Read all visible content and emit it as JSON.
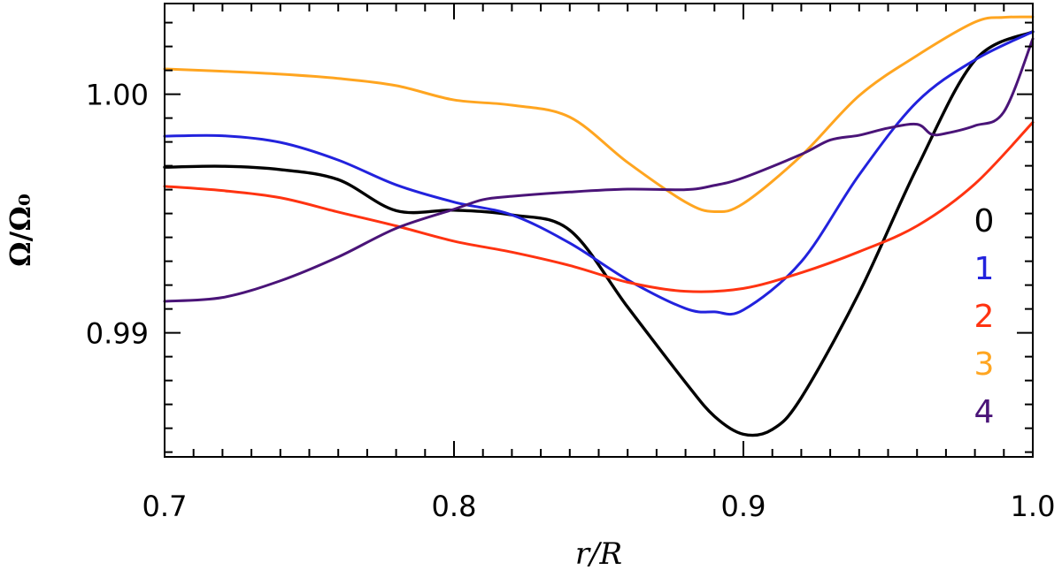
{
  "chart_data": {
    "type": "line",
    "title": "",
    "xlabel": "r/R",
    "ylabel": "Ω/Ω₀",
    "xlim": [
      0.7,
      1.0
    ],
    "ylim": [
      0.9848,
      1.0038
    ],
    "x_ticks": [
      0.7,
      0.8,
      0.9,
      1.0
    ],
    "x_tick_labels": [
      "0.7",
      "0.8",
      "0.9",
      "1.0"
    ],
    "y_ticks": [
      0.99,
      1.0
    ],
    "y_tick_labels": [
      "0.99",
      "1.00"
    ],
    "grid": false,
    "legend_placement": "right",
    "series": [
      {
        "name": "0",
        "color": "#000000",
        "x": [
          0.7,
          0.72,
          0.74,
          0.76,
          0.78,
          0.8,
          0.82,
          0.84,
          0.86,
          0.88,
          0.89,
          0.9,
          0.91,
          0.92,
          0.94,
          0.96,
          0.98,
          1.0
        ],
        "y": [
          0.99694,
          0.99698,
          0.99684,
          0.99642,
          0.99512,
          0.99514,
          0.99494,
          0.9943,
          0.99108,
          0.98792,
          0.9865,
          0.98575,
          0.98595,
          0.98728,
          0.99168,
          0.99692,
          1.00142,
          1.00262
        ]
      },
      {
        "name": "1",
        "color": "#2222dd",
        "x": [
          0.7,
          0.72,
          0.74,
          0.76,
          0.78,
          0.8,
          0.82,
          0.84,
          0.86,
          0.88,
          0.89,
          0.9,
          0.92,
          0.94,
          0.96,
          0.98,
          1.0
        ],
        "y": [
          0.99824,
          0.99826,
          0.99798,
          0.99724,
          0.9962,
          0.99548,
          0.99494,
          0.99376,
          0.99222,
          0.99102,
          0.99088,
          0.99096,
          0.99298,
          0.99662,
          0.99968,
          1.00144,
          1.00262
        ]
      },
      {
        "name": "2",
        "color": "#ff3311",
        "x": [
          0.7,
          0.72,
          0.74,
          0.76,
          0.78,
          0.8,
          0.82,
          0.84,
          0.86,
          0.88,
          0.9,
          0.92,
          0.94,
          0.96,
          0.98,
          1.0
        ],
        "y": [
          0.99614,
          0.99596,
          0.99566,
          0.99506,
          0.99448,
          0.99384,
          0.99338,
          0.99282,
          0.99212,
          0.99174,
          0.99186,
          0.99252,
          0.9934,
          0.99448,
          0.99624,
          0.99882
        ]
      },
      {
        "name": "3",
        "color": "#ffa520",
        "x": [
          0.7,
          0.72,
          0.74,
          0.76,
          0.78,
          0.8,
          0.82,
          0.84,
          0.86,
          0.88,
          0.89,
          0.9,
          0.92,
          0.94,
          0.96,
          0.98,
          0.99,
          1.0
        ],
        "y": [
          1.00106,
          1.00096,
          1.00084,
          1.00066,
          1.00036,
          0.99976,
          0.99954,
          0.99904,
          0.99714,
          0.99548,
          0.99508,
          0.99542,
          0.99742,
          0.99994,
          1.00162,
          1.00302,
          1.00322,
          1.00324
        ]
      },
      {
        "name": "4",
        "color": "#4a1478",
        "x": [
          0.7,
          0.72,
          0.74,
          0.76,
          0.78,
          0.8,
          0.81,
          0.82,
          0.84,
          0.86,
          0.88,
          0.89,
          0.9,
          0.92,
          0.93,
          0.94,
          0.95,
          0.96,
          0.965,
          0.97,
          0.98,
          0.99,
          1.0
        ],
        "y": [
          0.99132,
          0.99148,
          0.99218,
          0.99318,
          0.99438,
          0.99518,
          0.99558,
          0.99572,
          0.9959,
          0.99602,
          0.996,
          0.99618,
          0.9965,
          0.99748,
          0.99808,
          0.99828,
          0.99858,
          0.99874,
          0.99832,
          0.99836,
          0.99868,
          0.99926,
          1.00232
        ]
      }
    ]
  }
}
